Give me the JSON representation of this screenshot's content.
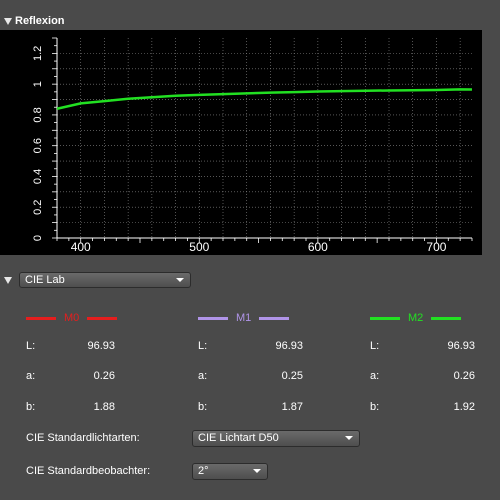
{
  "reflexion": {
    "title": "Reflexion"
  },
  "chart_data": {
    "type": "line",
    "x": [
      380,
      400,
      420,
      440,
      460,
      480,
      500,
      520,
      540,
      560,
      580,
      600,
      620,
      640,
      660,
      680,
      700,
      720,
      730
    ],
    "series": [
      {
        "color": "#22e022",
        "values": [
          0.84,
          0.875,
          0.89,
          0.905,
          0.915,
          0.925,
          0.93,
          0.935,
          0.94,
          0.945,
          0.948,
          0.952,
          0.955,
          0.957,
          0.959,
          0.96,
          0.962,
          0.966,
          0.965
        ]
      }
    ],
    "x_ticks": [
      "400",
      "500",
      "600",
      "700"
    ],
    "x_tick_values": [
      400,
      500,
      600,
      700
    ],
    "y_ticks": [
      "0",
      "0.2",
      "0.4",
      "0.6",
      "0.8",
      "1",
      "1.2"
    ],
    "y_tick_values": [
      0,
      0.2,
      0.4,
      0.6,
      0.8,
      1,
      1.2
    ],
    "xlim": [
      380,
      730
    ],
    "ylim": [
      0,
      1.3
    ],
    "grid": true,
    "background": "#000000"
  },
  "lab": {
    "mode_selected": "CIE Lab",
    "measurements": [
      {
        "name": "M0",
        "color": "#e51e1e",
        "L": "96.93",
        "a": "0.26",
        "b": "1.88"
      },
      {
        "name": "M1",
        "color": "#b094e8",
        "L": "96.93",
        "a": "0.25",
        "b": "1.87"
      },
      {
        "name": "M2",
        "color": "#22e022",
        "L": "96.93",
        "a": "0.26",
        "b": "1.92"
      }
    ],
    "labels": {
      "L": "L:",
      "a": "a:",
      "b": "b:"
    },
    "illuminant": {
      "label": "CIE Standardlichtarten:",
      "value": "CIE Lichtart D50"
    },
    "observer": {
      "label": "CIE Standardbeobachter:",
      "value": "2°"
    }
  }
}
